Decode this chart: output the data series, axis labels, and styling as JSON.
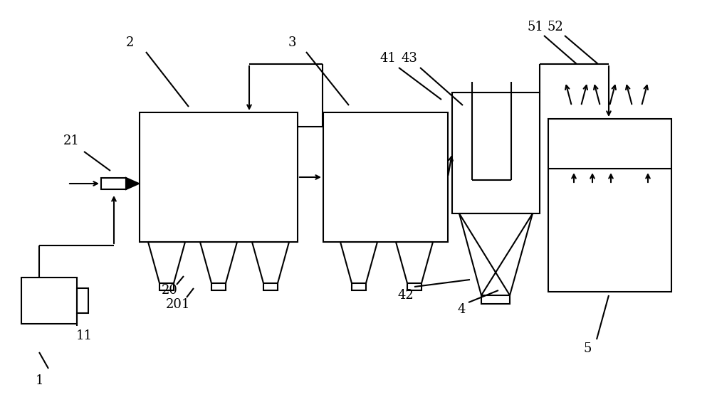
{
  "bg_color": "#ffffff",
  "lc": "#000000",
  "lw": 1.5,
  "figw": 10.0,
  "figh": 5.79
}
